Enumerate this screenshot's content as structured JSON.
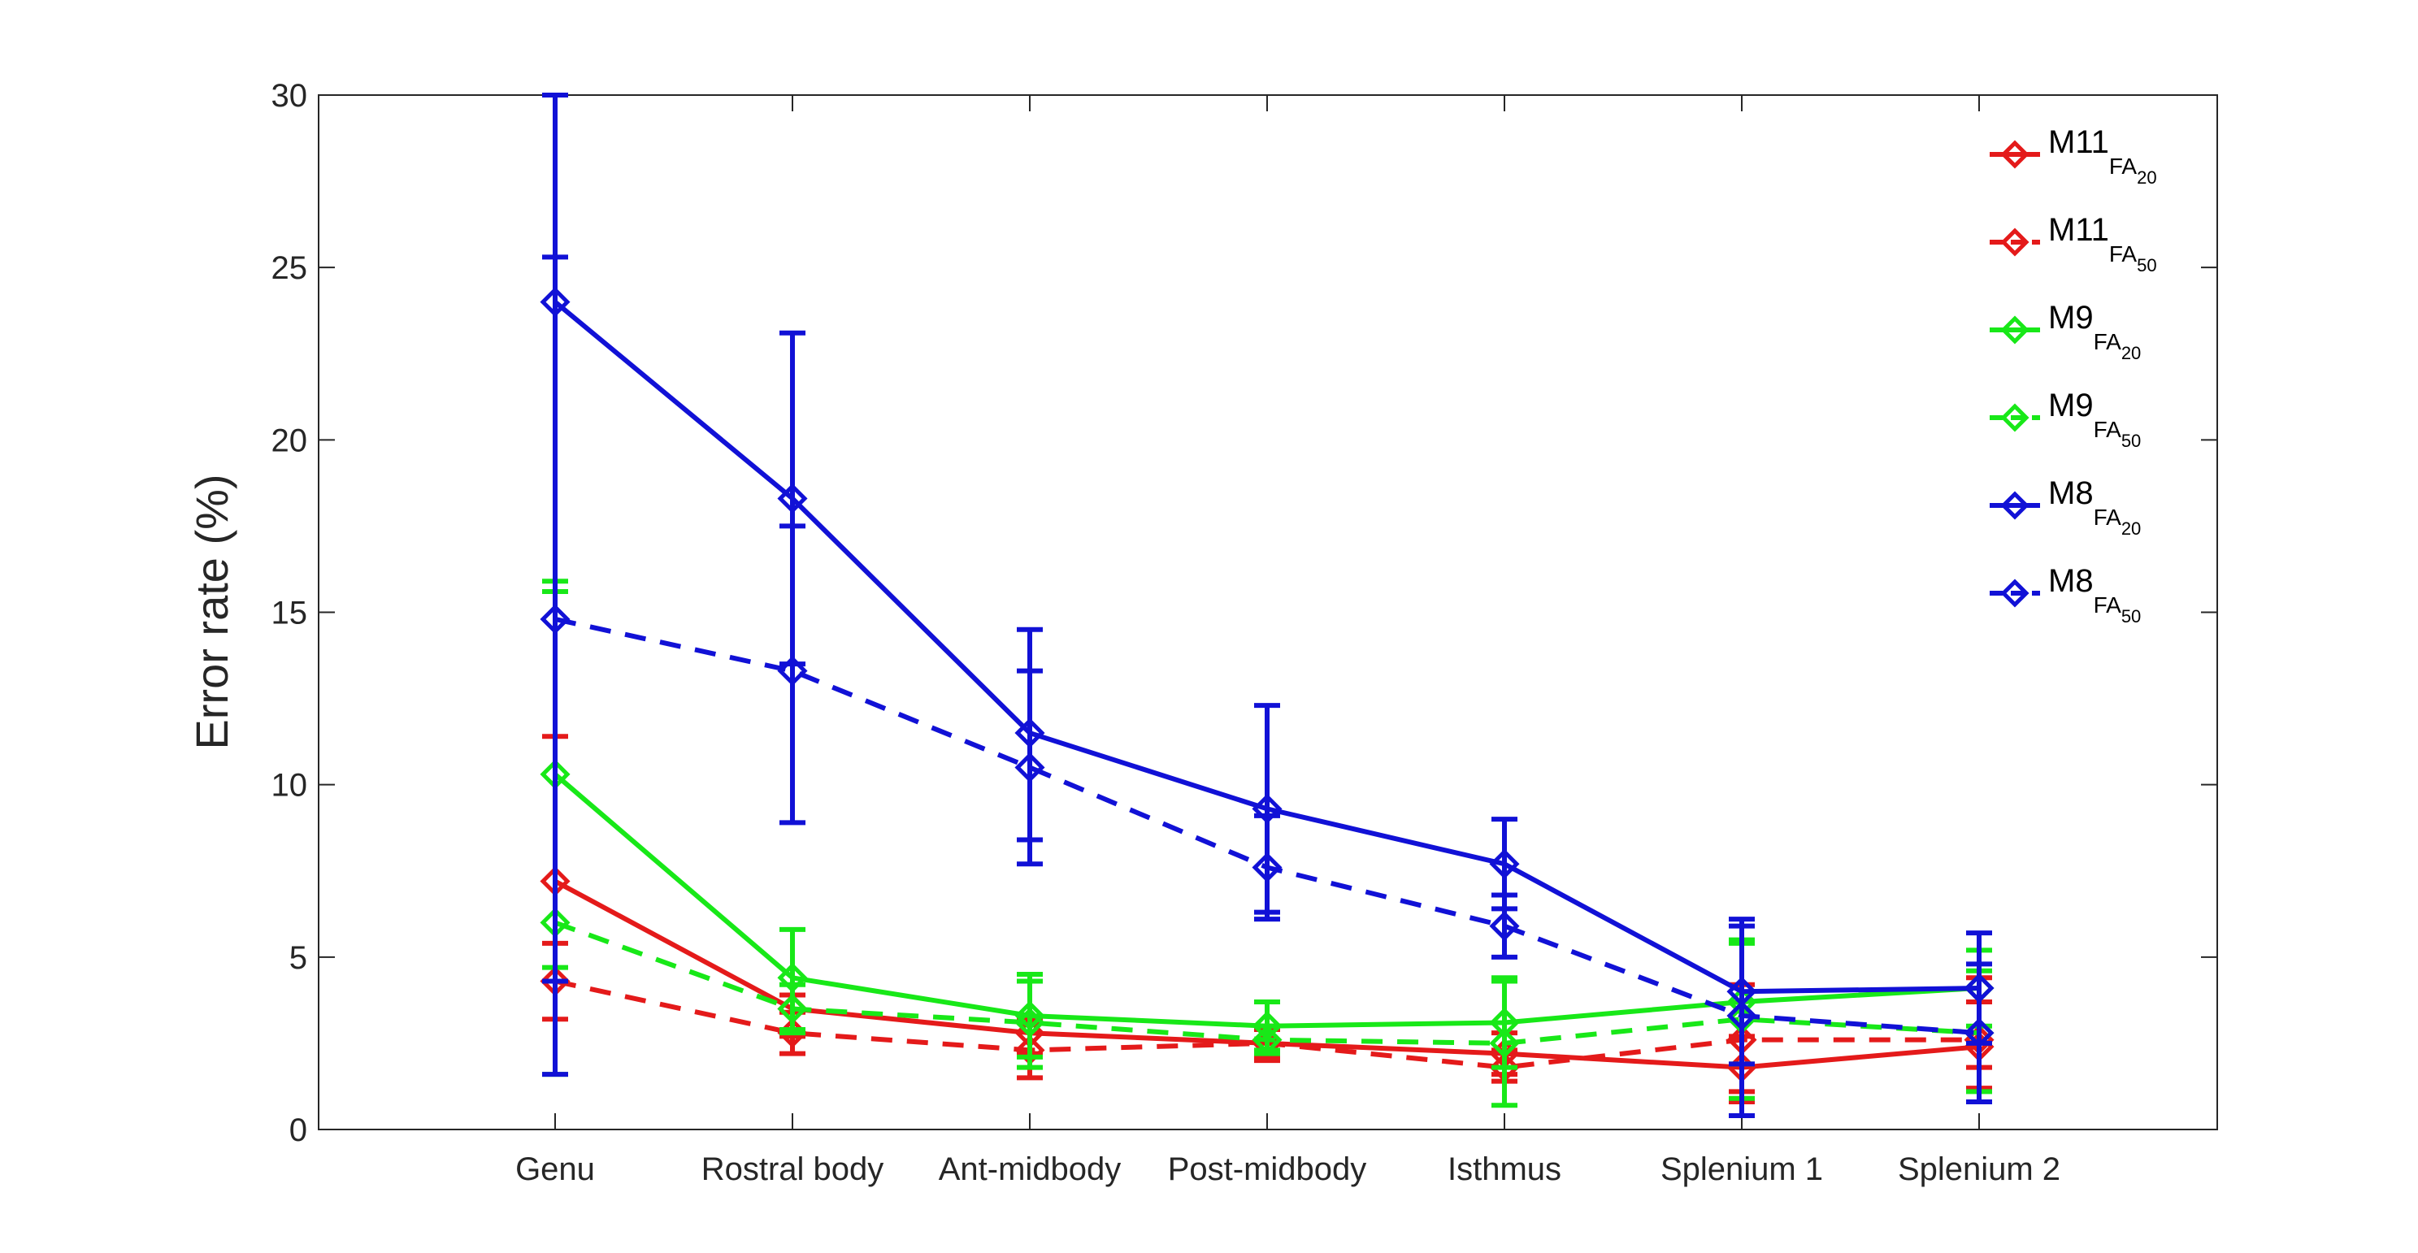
{
  "chart_data": {
    "type": "line",
    "title": "",
    "xlabel": "",
    "ylabel": "Error rate (%)",
    "ylim": [
      0,
      30
    ],
    "yticks": [
      0,
      5,
      10,
      15,
      20,
      25,
      30
    ],
    "categories": [
      "Genu",
      "Rostral body",
      "Ant-midbody",
      "Post-midbody",
      "Isthmus",
      "Splenium 1",
      "Splenium 2"
    ],
    "grid": false,
    "legend_position": "top-right",
    "marker": "diamond",
    "series": [
      {
        "name": "M11",
        "sub": "FA",
        "subsub": "20",
        "color": "#e41a1a",
        "dash": "solid",
        "values": [
          7.2,
          3.5,
          2.8,
          2.5,
          2.2,
          1.8,
          2.4
        ],
        "err_low": [
          4.3,
          2.7,
          2.2,
          2.1,
          1.6,
          0.8,
          1.2
        ],
        "err_high": [
          11.4,
          3.9,
          3.2,
          2.9,
          2.8,
          2.7,
          3.7
        ]
      },
      {
        "name": "M11",
        "sub": "FA",
        "subsub": "50",
        "color": "#e41a1a",
        "dash": "dashed",
        "values": [
          4.3,
          2.8,
          2.3,
          2.5,
          1.8,
          2.6,
          2.6
        ],
        "err_low": [
          3.2,
          2.2,
          1.5,
          2.0,
          1.4,
          1.1,
          1.8
        ],
        "err_high": [
          5.4,
          3.4,
          3.1,
          3.0,
          2.3,
          4.2,
          4.4
        ]
      },
      {
        "name": "M9",
        "sub": "FA",
        "subsub": "20",
        "color": "#18e818",
        "dash": "solid",
        "values": [
          10.3,
          4.4,
          3.3,
          3.0,
          3.1,
          3.7,
          4.1
        ],
        "err_low": [
          4.7,
          2.9,
          2.1,
          2.3,
          1.8,
          1.9,
          3.0
        ],
        "err_high": [
          15.9,
          5.8,
          4.5,
          3.7,
          4.4,
          5.5,
          5.2
        ]
      },
      {
        "name": "M9",
        "sub": "FA",
        "subsub": "50",
        "color": "#18e818",
        "dash": "dashed",
        "values": [
          6.0,
          3.5,
          3.1,
          2.6,
          2.5,
          3.2,
          2.8
        ],
        "err_low": [
          1.6,
          2.8,
          1.8,
          2.2,
          0.7,
          0.9,
          1.1
        ],
        "err_high": [
          15.6,
          4.2,
          4.3,
          3.0,
          4.3,
          5.4,
          4.6
        ]
      },
      {
        "name": "M8",
        "sub": "FA",
        "subsub": "20",
        "color": "#1111d6",
        "dash": "solid",
        "values": [
          24.0,
          18.3,
          11.5,
          9.3,
          7.7,
          4.0,
          4.1
        ],
        "err_low": [
          1.6,
          13.5,
          8.4,
          6.3,
          6.4,
          1.9,
          2.5
        ],
        "err_high": [
          30.0,
          23.1,
          14.5,
          12.3,
          9.0,
          6.1,
          5.7
        ]
      },
      {
        "name": "M8",
        "sub": "FA",
        "subsub": "50",
        "color": "#1111d6",
        "dash": "dashed",
        "values": [
          14.8,
          13.3,
          10.5,
          7.6,
          5.9,
          3.3,
          2.8
        ],
        "err_low": [
          4.3,
          8.9,
          7.7,
          6.1,
          5.0,
          0.4,
          0.8
        ],
        "err_high": [
          25.3,
          17.5,
          13.3,
          9.1,
          6.8,
          5.9,
          4.8
        ]
      }
    ]
  }
}
